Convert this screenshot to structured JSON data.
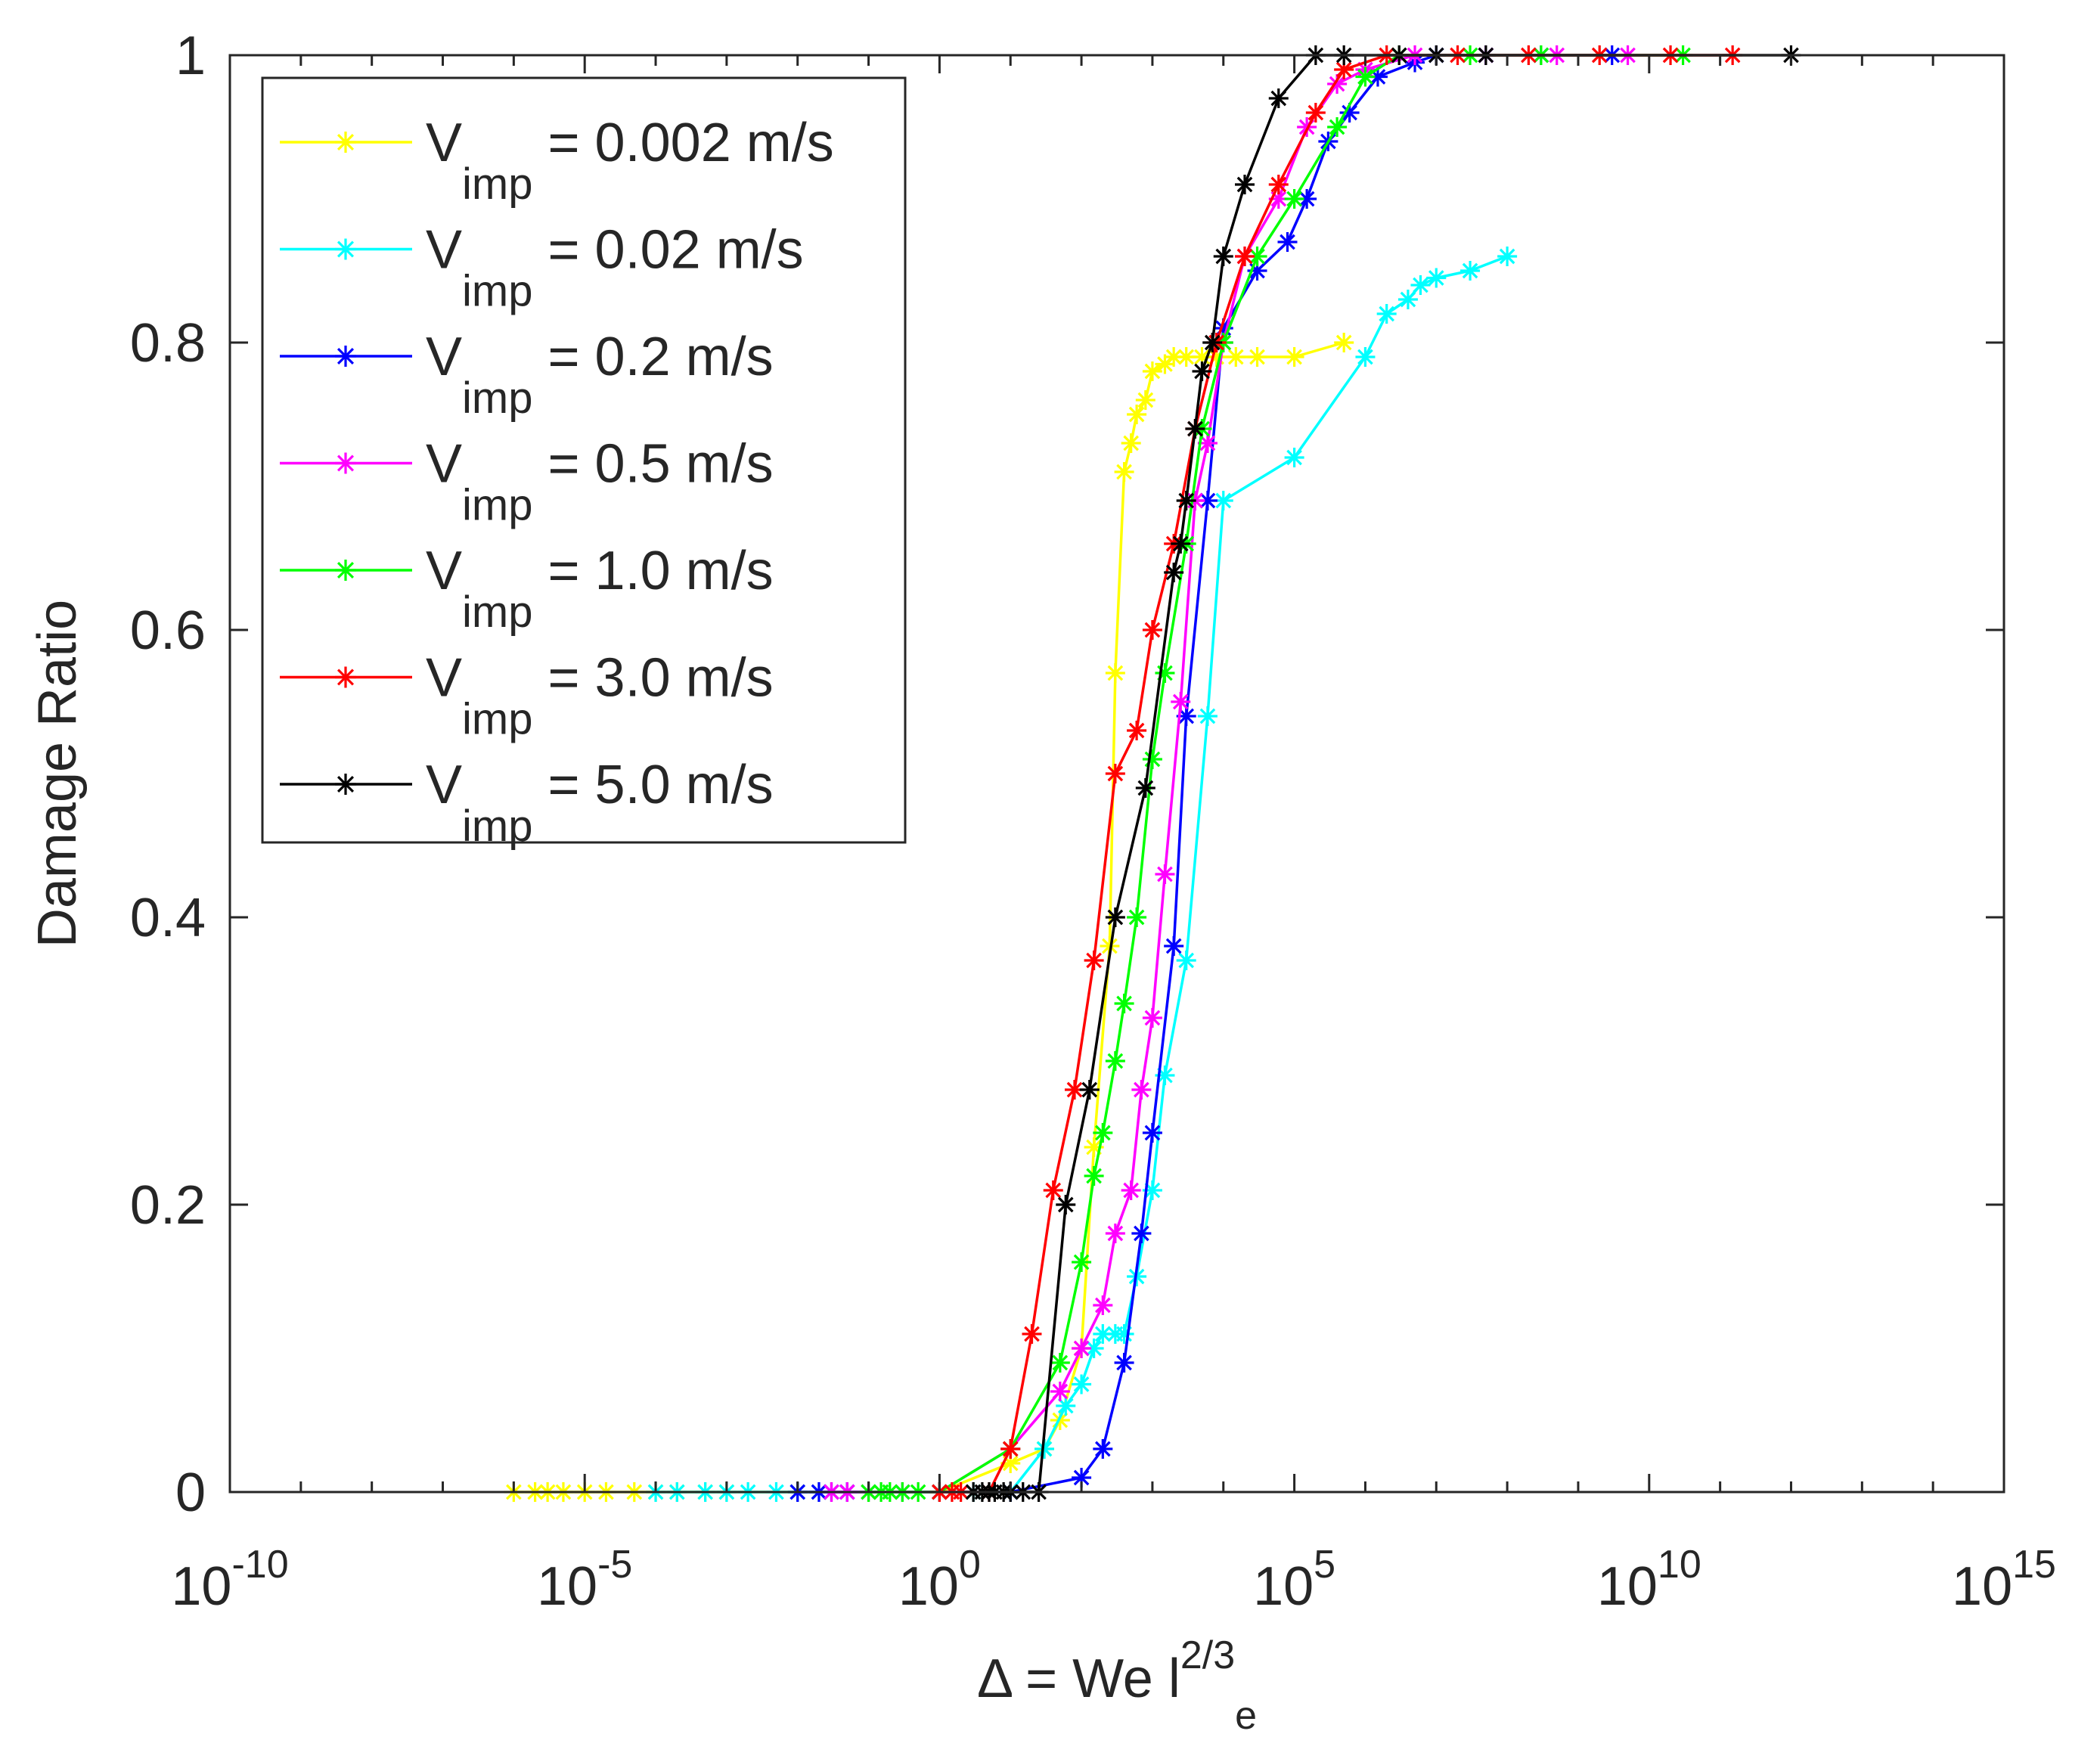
{
  "chart_data": {
    "type": "line",
    "xscale": "log",
    "xlim": [
      1e-10,
      1000000000000000.0
    ],
    "ylim": [
      0,
      1
    ],
    "grid": false,
    "legend_position": "top-left",
    "ylabel": "Damage Ratio",
    "xlabel": {
      "main": "Δ = We l",
      "sup": "2/3",
      "sub": "e"
    },
    "xticks": [
      {
        "value": 1e-10,
        "base": "10",
        "exp": "-10"
      },
      {
        "value": 1e-05,
        "base": "10",
        "exp": "-5"
      },
      {
        "value": 1,
        "base": "10",
        "exp": "0"
      },
      {
        "value": 100000.0,
        "base": "10",
        "exp": "5"
      },
      {
        "value": 10000000000.0,
        "base": "10",
        "exp": "10"
      },
      {
        "value": 1000000000000000.0,
        "base": "10",
        "exp": "15"
      }
    ],
    "yticks": [
      {
        "value": 0,
        "label": "0"
      },
      {
        "value": 0.2,
        "label": "0.2"
      },
      {
        "value": 0.4,
        "label": "0.4"
      },
      {
        "value": 0.6,
        "label": "0.6"
      },
      {
        "value": 0.8,
        "label": "0.8"
      },
      {
        "value": 1,
        "label": "1"
      }
    ],
    "series": [
      {
        "name": "V_imp = 0.002 m/s",
        "label": {
          "main": "V",
          "sub": "imp",
          "rest": " = 0.002 m/s"
        },
        "color": "#FFFF00",
        "x": [
          1e-06,
          2e-06,
          3e-06,
          5e-06,
          1e-05,
          2e-05,
          5e-05,
          0.0001,
          0.0002,
          0.0005,
          0.001,
          0.01,
          0.1,
          1,
          10,
          30,
          50,
          100,
          150,
          250,
          300,
          400,
          500,
          600,
          800,
          1000,
          1500,
          2000,
          3000,
          5000,
          8000,
          15000,
          30000,
          100000,
          500000
        ],
        "y": [
          0,
          0,
          0,
          0,
          0,
          0,
          0,
          0,
          0,
          0,
          0,
          0,
          0,
          0,
          0.02,
          0.03,
          0.05,
          0.1,
          0.24,
          0.38,
          0.57,
          0.71,
          0.73,
          0.75,
          0.76,
          0.78,
          0.785,
          0.79,
          0.79,
          0.79,
          0.79,
          0.79,
          0.79,
          0.79,
          0.8
        ]
      },
      {
        "name": "V_imp = 0.02 m/s",
        "label": {
          "main": "V",
          "sub": "imp",
          "rest": " = 0.02 m/s"
        },
        "color": "#00FFFF",
        "x": [
          0.0001,
          0.0002,
          0.0005,
          0.001,
          0.002,
          0.005,
          0.01,
          0.02,
          0.05,
          0.1,
          0.3,
          1,
          3,
          10,
          30,
          60,
          100,
          150,
          200,
          300,
          400,
          600,
          1000,
          1500,
          3000,
          6000,
          10000,
          100000,
          1000000,
          2000000,
          4000000,
          6000000,
          10000000,
          30000000,
          100000000
        ],
        "y": [
          0,
          0,
          0,
          0,
          0,
          0,
          0,
          0,
          0,
          0,
          0,
          0,
          0,
          0,
          0.03,
          0.06,
          0.075,
          0.1,
          0.11,
          0.11,
          0.11,
          0.15,
          0.21,
          0.29,
          0.37,
          0.54,
          0.69,
          0.72,
          0.79,
          0.82,
          0.83,
          0.84,
          0.845,
          0.85,
          0.86
        ]
      },
      {
        "name": "V_imp = 0.2 m/s",
        "label": {
          "main": "V",
          "sub": "imp",
          "rest": " = 0.2 m/s"
        },
        "color": "#0000FF",
        "x": [
          0.01,
          0.02,
          0.03,
          0.05,
          1,
          10,
          100,
          200,
          400,
          700,
          1000,
          2000,
          3000,
          6000,
          10000,
          30000,
          80000,
          150000,
          300000,
          600000,
          1500000,
          5000000,
          10000000,
          50000000,
          300000000,
          3000000000
        ],
        "y": [
          0,
          0,
          0,
          0,
          0,
          0,
          0.01,
          0.03,
          0.09,
          0.18,
          0.25,
          0.38,
          0.54,
          0.69,
          0.81,
          0.85,
          0.87,
          0.9,
          0.94,
          0.96,
          0.985,
          0.995,
          1,
          1,
          1,
          1
        ]
      },
      {
        "name": "V_imp = 0.5 m/s",
        "label": {
          "main": "V",
          "sub": "imp",
          "rest": " = 0.5 m/s"
        },
        "color": "#FF00FF",
        "x": [
          0.03,
          0.05,
          0.1,
          0.3,
          1,
          10,
          50,
          100,
          200,
          300,
          500,
          700,
          1000,
          1500,
          2500,
          4000,
          6000,
          10000,
          20000,
          60000,
          150000,
          400000,
          1000000,
          5000000,
          50000000,
          500000000,
          5000000000
        ],
        "y": [
          0,
          0,
          0,
          0,
          0,
          0.03,
          0.07,
          0.1,
          0.13,
          0.18,
          0.21,
          0.28,
          0.33,
          0.43,
          0.55,
          0.69,
          0.73,
          0.8,
          0.86,
          0.9,
          0.95,
          0.98,
          0.99,
          1,
          1,
          1,
          1
        ]
      },
      {
        "name": "V_imp = 1.0 m/s",
        "label": {
          "main": "V",
          "sub": "imp",
          "rest": " = 1.0 m/s"
        },
        "color": "#00FF00",
        "x": [
          0.1,
          0.15,
          0.2,
          0.3,
          0.5,
          1,
          10,
          50,
          100,
          150,
          200,
          300,
          400,
          600,
          1000,
          1500,
          3000,
          5000,
          10000,
          30000,
          100000,
          400000,
          1000000,
          3000000,
          30000000,
          300000000,
          30000000000
        ],
        "y": [
          0,
          0,
          0,
          0,
          0,
          0,
          0.03,
          0.09,
          0.16,
          0.22,
          0.25,
          0.3,
          0.34,
          0.4,
          0.51,
          0.57,
          0.66,
          0.74,
          0.8,
          0.86,
          0.9,
          0.95,
          0.985,
          1,
          1,
          1,
          1
        ]
      },
      {
        "name": "V_imp = 3.0 m/s",
        "label": {
          "main": "V",
          "sub": "imp",
          "rest": " = 3.0 m/s"
        },
        "color": "#FF0000",
        "x": [
          1,
          1.5,
          2,
          5,
          10,
          20,
          40,
          80,
          150,
          300,
          600,
          1000,
          2000,
          4000,
          8000,
          20000,
          60000,
          200000,
          500000,
          2000000,
          20000000,
          200000000,
          2000000000,
          20000000000,
          150000000000
        ],
        "y": [
          0,
          0,
          0,
          0,
          0.03,
          0.11,
          0.21,
          0.28,
          0.37,
          0.5,
          0.53,
          0.6,
          0.66,
          0.74,
          0.8,
          0.86,
          0.91,
          0.96,
          0.99,
          1,
          1,
          1,
          1,
          1,
          1
        ]
      },
      {
        "name": "V_imp = 5.0 m/s",
        "label": {
          "main": "V",
          "sub": "imp",
          "rest": " = 5.0 m/s"
        },
        "color": "#000000",
        "x": [
          3,
          4,
          5,
          6,
          8,
          10,
          15,
          25,
          60,
          130,
          300,
          800,
          2000,
          2500,
          3000,
          4000,
          5000,
          7000,
          10000,
          20000,
          60000,
          200000,
          500000,
          3000000,
          10000000,
          50000000,
          1000000000000
        ],
        "y": [
          0,
          0,
          0,
          0,
          0,
          0,
          0,
          0,
          0.2,
          0.28,
          0.4,
          0.49,
          0.64,
          0.66,
          0.69,
          0.74,
          0.78,
          0.8,
          0.86,
          0.91,
          0.97,
          1,
          1,
          1,
          1,
          1,
          1
        ]
      }
    ]
  }
}
